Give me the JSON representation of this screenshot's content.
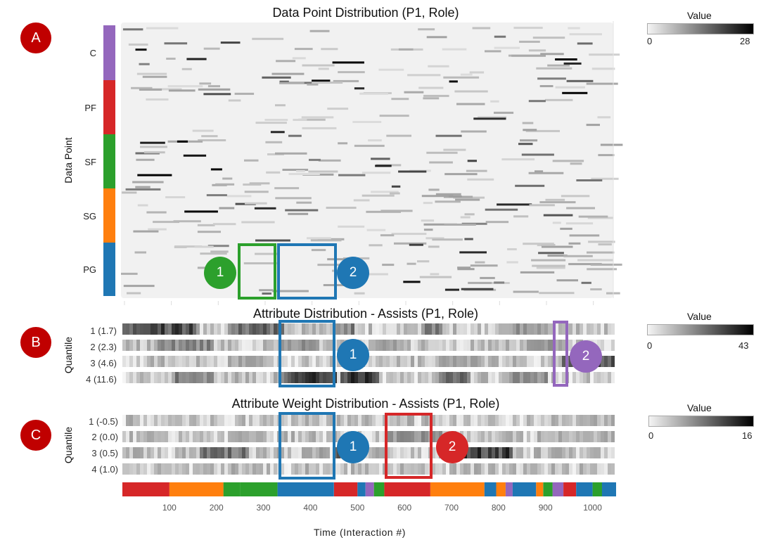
{
  "chart_data": [
    {
      "type": "heatmap",
      "title": "Data Point Distribution (P1, Role)",
      "ylabel": "Data Point",
      "categories": [
        "C",
        "PF",
        "SF",
        "SG",
        "PG"
      ],
      "category_colors": [
        "#9467bd",
        "#d62728",
        "#2ca02c",
        "#ff7f0e",
        "#1f77b4"
      ],
      "legend": {
        "title": "Value",
        "min": "0",
        "max": "28"
      },
      "annotations": [
        "A",
        "1",
        "2"
      ]
    },
    {
      "type": "heatmap",
      "title": "Attribute Distribution - Assists (P1, Role)",
      "ylabel": "Quantile",
      "rows": [
        "1 (1.7)",
        "2 (2.3)",
        "3 (4.6)",
        "4 (11.6)"
      ],
      "legend": {
        "title": "Value",
        "min": "0",
        "max": "43"
      },
      "annotations": [
        "B",
        "1",
        "2"
      ]
    },
    {
      "type": "heatmap",
      "title": "Attribute Weight Distribution - Assists (P1, Role)",
      "ylabel": "Quantile",
      "rows": [
        "1 (-0.5)",
        "2 (0.0)",
        "3 (0.5)",
        "4 (1.0)"
      ],
      "legend": {
        "title": "Value",
        "min": "0",
        "max": "16"
      },
      "annotations": [
        "C",
        "1",
        "2"
      ]
    }
  ],
  "timeline": {
    "xlabel": "Time (Interaction #)",
    "xticks": [
      "100",
      "200",
      "300",
      "400",
      "500",
      "600",
      "700",
      "800",
      "900",
      "1000"
    ],
    "xrange": [
      0,
      1050
    ],
    "segments": [
      {
        "start": 0,
        "end": 100,
        "role": "PF"
      },
      {
        "start": 100,
        "end": 215,
        "role": "SG"
      },
      {
        "start": 215,
        "end": 250,
        "role": "SF"
      },
      {
        "start": 250,
        "end": 330,
        "role": "SF"
      },
      {
        "start": 330,
        "end": 450,
        "role": "PG"
      },
      {
        "start": 450,
        "end": 500,
        "role": "PF"
      },
      {
        "start": 500,
        "end": 517,
        "role": "PG"
      },
      {
        "start": 517,
        "end": 535,
        "role": "C"
      },
      {
        "start": 535,
        "end": 557,
        "role": "SF"
      },
      {
        "start": 557,
        "end": 655,
        "role": "PF"
      },
      {
        "start": 655,
        "end": 770,
        "role": "SG"
      },
      {
        "start": 770,
        "end": 795,
        "role": "PG"
      },
      {
        "start": 795,
        "end": 815,
        "role": "SG"
      },
      {
        "start": 815,
        "end": 830,
        "role": "C"
      },
      {
        "start": 830,
        "end": 880,
        "role": "PG"
      },
      {
        "start": 880,
        "end": 895,
        "role": "SG"
      },
      {
        "start": 895,
        "end": 915,
        "role": "SF"
      },
      {
        "start": 915,
        "end": 938,
        "role": "C"
      },
      {
        "start": 938,
        "end": 965,
        "role": "PF"
      },
      {
        "start": 965,
        "end": 1000,
        "role": "PG"
      },
      {
        "start": 1000,
        "end": 1020,
        "role": "SF"
      },
      {
        "start": 1020,
        "end": 1050,
        "role": "PG"
      }
    ]
  },
  "colors": {
    "badge": "#c00000",
    "green": "#2ca02c",
    "blue": "#1f77b4",
    "purple": "#9467bd",
    "red": "#d62728"
  }
}
